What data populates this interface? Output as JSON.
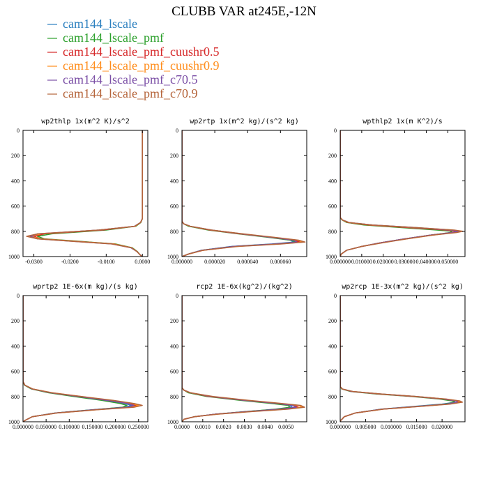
{
  "title": "CLUBB VAR at245E,-12N",
  "legend": [
    {
      "label": "cam144_lscale",
      "color": "#2a7fbf"
    },
    {
      "label": "cam144_lscale_pmf",
      "color": "#2ca02c"
    },
    {
      "label": "cam144_lscale_pmf_cuushr0.5",
      "color": "#d62728"
    },
    {
      "label": "cam144_lscale_pmf_cuushr0.9",
      "color": "#ff8c1a"
    },
    {
      "label": "cam144_lscale_pmf_c70.5",
      "color": "#7b4fa6"
    },
    {
      "label": "cam144_lscale_pmf_c70.9",
      "color": "#b5643a"
    }
  ],
  "chart_data": [
    {
      "type": "line",
      "title": "wp2thlp  1x(m^2 K)/s^2",
      "xlim": [
        -0.033,
        0.0015
      ],
      "ylim": [
        1000,
        0
      ],
      "x_ticks": [
        -0.03,
        -0.02,
        -0.01,
        0.0
      ],
      "x_tick_labels": [
        "-0.0300",
        "-0.0200",
        "-0.0100",
        "0.0000"
      ],
      "y_ticks": [
        0,
        200,
        400,
        600,
        800,
        1000
      ],
      "y_tick_labels": [
        "0",
        "200",
        "400",
        "600",
        "800",
        "1000"
      ],
      "y": [
        0,
        700,
        730,
        760,
        790,
        820,
        840,
        860,
        880,
        900,
        930,
        960,
        990,
        1000
      ],
      "series": [
        {
          "values": [
            0,
            0,
            -0.0005,
            -0.002,
            -0.012,
            -0.028,
            -0.031,
            -0.028,
            -0.018,
            -0.008,
            -0.003,
            -0.0015,
            -0.0005,
            0
          ]
        },
        {
          "values": [
            0,
            0,
            -0.0004,
            -0.0018,
            -0.01,
            -0.025,
            -0.029,
            -0.027,
            -0.017,
            -0.0075,
            -0.0028,
            -0.0014,
            -0.0005,
            0
          ]
        },
        {
          "values": [
            0,
            0,
            -0.0005,
            -0.002,
            -0.011,
            -0.027,
            -0.03,
            -0.028,
            -0.018,
            -0.008,
            -0.003,
            -0.0015,
            -0.0005,
            0
          ]
        },
        {
          "values": [
            0,
            0,
            -0.0005,
            -0.002,
            -0.012,
            -0.028,
            -0.031,
            -0.028,
            -0.018,
            -0.008,
            -0.003,
            -0.0015,
            -0.0005,
            0
          ]
        },
        {
          "values": [
            0,
            0,
            -0.0005,
            -0.0022,
            -0.012,
            -0.029,
            -0.031,
            -0.029,
            -0.019,
            -0.0085,
            -0.0032,
            -0.0015,
            -0.0005,
            0
          ]
        },
        {
          "values": [
            0,
            0,
            -0.0005,
            -0.0021,
            -0.012,
            -0.029,
            -0.032,
            -0.029,
            -0.019,
            -0.0085,
            -0.003,
            -0.0015,
            -0.0005,
            0
          ]
        }
      ]
    },
    {
      "type": "line",
      "title": "wp2rtp  1x(m^2 kg)/(s^2 kg)",
      "xlim": [
        0,
        7.6e-05
      ],
      "ylim": [
        1000,
        0
      ],
      "x_ticks": [
        0,
        2e-05,
        4e-05,
        6e-05
      ],
      "x_tick_labels": [
        "0.000000",
        "0.000020",
        "0.000040",
        "0.000060"
      ],
      "y_ticks": [
        0,
        200,
        400,
        600,
        800,
        1000
      ],
      "y_tick_labels": [
        "0",
        "200",
        "400",
        "600",
        "800",
        "1000"
      ],
      "y": [
        0,
        720,
        740,
        760,
        790,
        820,
        850,
        870,
        885,
        900,
        920,
        950,
        980,
        1000
      ],
      "series": [
        {
          "values": [
            0,
            0,
            1e-06,
            5e-06,
            1.8e-05,
            3.6e-05,
            5.5e-05,
            6.6e-05,
            6.8e-05,
            5.5e-05,
            3e-05,
            1.2e-05,
            4e-06,
            0
          ]
        },
        {
          "values": [
            0,
            0,
            1e-06,
            4e-06,
            1.6e-05,
            3.4e-05,
            5.4e-05,
            6.6e-05,
            7e-05,
            5.7e-05,
            3.1e-05,
            1.2e-05,
            4e-06,
            0
          ]
        },
        {
          "values": [
            0,
            0,
            1e-06,
            5e-06,
            1.7e-05,
            3.5e-05,
            5.6e-05,
            6.8e-05,
            7.2e-05,
            5.8e-05,
            3.2e-05,
            1.3e-05,
            4e-06,
            0
          ]
        },
        {
          "values": [
            0,
            0,
            1e-06,
            5e-06,
            1.8e-05,
            3.6e-05,
            5.7e-05,
            7e-05,
            7.4e-05,
            6e-05,
            3.3e-05,
            1.3e-05,
            4e-06,
            0
          ]
        },
        {
          "values": [
            0,
            0,
            1e-06,
            5e-06,
            1.8e-05,
            3.6e-05,
            5.6e-05,
            6.8e-05,
            7e-05,
            5.7e-05,
            3.1e-05,
            1.2e-05,
            4e-06,
            0
          ]
        },
        {
          "values": [
            0,
            0,
            1e-06,
            5e-06,
            1.8e-05,
            3.7e-05,
            5.8e-05,
            7.1e-05,
            7.5e-05,
            6.1e-05,
            3.4e-05,
            1.3e-05,
            4e-06,
            0
          ]
        }
      ]
    },
    {
      "type": "line",
      "title": "wpthlp2  1x(m K^2)/s",
      "xlim": [
        0,
        0.058
      ],
      "ylim": [
        1000,
        0
      ],
      "x_ticks": [
        0,
        0.01,
        0.02,
        0.03,
        0.04,
        0.05
      ],
      "x_tick_labels": [
        "0.000000",
        "0.010000",
        "0.020000",
        "0.030000",
        "0.040000",
        "0.050000"
      ],
      "y_ticks": [
        0,
        200,
        400,
        600,
        800,
        1000
      ],
      "y_tick_labels": [
        "0",
        "200",
        "400",
        "600",
        "800",
        "1000"
      ],
      "y": [
        0,
        690,
        710,
        730,
        750,
        770,
        790,
        800,
        810,
        830,
        860,
        890,
        920,
        950,
        980,
        1000
      ],
      "series": [
        {
          "values": [
            0,
            0,
            0.001,
            0.004,
            0.015,
            0.035,
            0.052,
            0.055,
            0.052,
            0.042,
            0.03,
            0.019,
            0.01,
            0.003,
            0.0005,
            0
          ]
        },
        {
          "values": [
            0,
            0,
            0.0008,
            0.003,
            0.011,
            0.028,
            0.045,
            0.052,
            0.051,
            0.042,
            0.03,
            0.019,
            0.01,
            0.003,
            0.0005,
            0
          ]
        },
        {
          "values": [
            0,
            0,
            0.001,
            0.0035,
            0.013,
            0.031,
            0.049,
            0.054,
            0.052,
            0.042,
            0.03,
            0.019,
            0.01,
            0.003,
            0.0005,
            0
          ]
        },
        {
          "values": [
            0,
            0,
            0.001,
            0.0038,
            0.014,
            0.033,
            0.051,
            0.056,
            0.053,
            0.043,
            0.031,
            0.019,
            0.01,
            0.003,
            0.0005,
            0
          ]
        },
        {
          "values": [
            0,
            0,
            0.001,
            0.004,
            0.015,
            0.034,
            0.051,
            0.055,
            0.052,
            0.042,
            0.03,
            0.019,
            0.01,
            0.003,
            0.0005,
            0
          ]
        },
        {
          "values": [
            0,
            0,
            0.001,
            0.004,
            0.015,
            0.035,
            0.053,
            0.057,
            0.054,
            0.043,
            0.031,
            0.02,
            0.01,
            0.003,
            0.0005,
            0
          ]
        }
      ]
    },
    {
      "type": "line",
      "title": "wprtp2  1E-6x(m kg)/(s kg)",
      "xlim": [
        0,
        0.27
      ],
      "ylim": [
        1000,
        0
      ],
      "x_ticks": [
        0,
        0.05,
        0.1,
        0.15,
        0.2,
        0.25
      ],
      "x_tick_labels": [
        "0.000000",
        "0.050000",
        "0.100000",
        "0.150000",
        "0.200000",
        "0.250000"
      ],
      "y_ticks": [
        0,
        200,
        400,
        600,
        800,
        1000
      ],
      "y_tick_labels": [
        "0",
        "200",
        "400",
        "600",
        "800",
        "1000"
      ],
      "y": [
        0,
        680,
        710,
        740,
        770,
        800,
        830,
        855,
        870,
        885,
        905,
        930,
        960,
        990,
        1000
      ],
      "series": [
        {
          "values": [
            0,
            0,
            0.004,
            0.02,
            0.06,
            0.12,
            0.18,
            0.22,
            0.235,
            0.22,
            0.15,
            0.07,
            0.02,
            0.004,
            0
          ]
        },
        {
          "values": [
            0,
            0,
            0.003,
            0.018,
            0.055,
            0.11,
            0.17,
            0.21,
            0.225,
            0.215,
            0.15,
            0.07,
            0.02,
            0.004,
            0
          ]
        },
        {
          "values": [
            0,
            0,
            0.004,
            0.02,
            0.06,
            0.12,
            0.185,
            0.23,
            0.245,
            0.23,
            0.155,
            0.072,
            0.02,
            0.004,
            0
          ]
        },
        {
          "values": [
            0,
            0,
            0.004,
            0.021,
            0.062,
            0.125,
            0.19,
            0.235,
            0.25,
            0.235,
            0.158,
            0.073,
            0.02,
            0.004,
            0
          ]
        },
        {
          "values": [
            0,
            0,
            0.004,
            0.02,
            0.06,
            0.12,
            0.18,
            0.225,
            0.24,
            0.225,
            0.152,
            0.071,
            0.02,
            0.004,
            0
          ]
        },
        {
          "values": [
            0,
            0,
            0.004,
            0.021,
            0.063,
            0.127,
            0.195,
            0.24,
            0.258,
            0.24,
            0.16,
            0.074,
            0.02,
            0.004,
            0
          ]
        }
      ]
    },
    {
      "type": "line",
      "title": "rcp2  1E-6x(kg^2)/(kg^2)",
      "xlim": [
        0,
        0.006
      ],
      "ylim": [
        1000,
        0
      ],
      "x_ticks": [
        0,
        0.001,
        0.002,
        0.003,
        0.004,
        0.005
      ],
      "x_tick_labels": [
        "0.0000",
        "0.0010",
        "0.0020",
        "0.0030",
        "0.0040",
        "0.0050"
      ],
      "y_ticks": [
        0,
        200,
        400,
        600,
        800,
        1000
      ],
      "y_tick_labels": [
        "0",
        "200",
        "400",
        "600",
        "800",
        "1000"
      ],
      "y": [
        0,
        730,
        750,
        770,
        800,
        830,
        855,
        870,
        885,
        900,
        920,
        940,
        960,
        980,
        1000
      ],
      "series": [
        {
          "values": [
            0,
            0,
            0.0001,
            0.0004,
            0.0014,
            0.003,
            0.0045,
            0.0052,
            0.0053,
            0.0046,
            0.003,
            0.0016,
            0.0006,
            0.0001,
            0
          ]
        },
        {
          "values": [
            0,
            0,
            0.0001,
            0.0003,
            0.0012,
            0.0028,
            0.0043,
            0.0051,
            0.0052,
            0.0045,
            0.003,
            0.0016,
            0.0006,
            0.0001,
            0
          ]
        },
        {
          "values": [
            0,
            0,
            0.0001,
            0.0004,
            0.0013,
            0.003,
            0.0046,
            0.0054,
            0.0056,
            0.0048,
            0.0031,
            0.0016,
            0.0006,
            0.0001,
            0
          ]
        },
        {
          "values": [
            0,
            0,
            0.0001,
            0.0004,
            0.0014,
            0.0031,
            0.0047,
            0.0056,
            0.0058,
            0.005,
            0.0032,
            0.0017,
            0.0006,
            0.0001,
            0
          ]
        },
        {
          "values": [
            0,
            0,
            0.0001,
            0.0004,
            0.0014,
            0.003,
            0.0046,
            0.0053,
            0.0055,
            0.0047,
            0.0031,
            0.0016,
            0.0006,
            0.0001,
            0
          ]
        },
        {
          "values": [
            0,
            0,
            0.0001,
            0.0004,
            0.0015,
            0.0032,
            0.0048,
            0.0057,
            0.0059,
            0.0051,
            0.0033,
            0.0017,
            0.0006,
            0.0001,
            0
          ]
        }
      ]
    },
    {
      "type": "line",
      "title": "wp2rcp  1E-3x(m^2 kg)/(s^2 kg)",
      "xlim": [
        0,
        0.0245
      ],
      "ylim": [
        1000,
        0
      ],
      "x_ticks": [
        0,
        0.005,
        0.01,
        0.015,
        0.02
      ],
      "x_tick_labels": [
        "0.000000",
        "0.005000",
        "0.010000",
        "0.015000",
        "0.020000"
      ],
      "y_ticks": [
        0,
        200,
        400,
        600,
        800,
        1000
      ],
      "y_tick_labels": [
        "0",
        "200",
        "400",
        "600",
        "800",
        "1000"
      ],
      "y": [
        0,
        720,
        740,
        760,
        780,
        800,
        820,
        835,
        845,
        860,
        880,
        900,
        930,
        960,
        990,
        1000
      ],
      "series": [
        {
          "values": [
            0,
            0,
            0.0004,
            0.0025,
            0.008,
            0.015,
            0.0205,
            0.0225,
            0.0225,
            0.02,
            0.014,
            0.008,
            0.003,
            0.0008,
            0.0001,
            0
          ]
        },
        {
          "values": [
            0,
            0,
            0.0003,
            0.002,
            0.007,
            0.014,
            0.0195,
            0.022,
            0.0225,
            0.0205,
            0.0145,
            0.0082,
            0.003,
            0.0008,
            0.0001,
            0
          ]
        },
        {
          "values": [
            0,
            0,
            0.0004,
            0.0022,
            0.0075,
            0.0145,
            0.0202,
            0.0228,
            0.0232,
            0.021,
            0.0148,
            0.0083,
            0.003,
            0.0008,
            0.0001,
            0
          ]
        },
        {
          "values": [
            0,
            0,
            0.0004,
            0.0024,
            0.0078,
            0.0148,
            0.0206,
            0.0232,
            0.0236,
            0.0213,
            0.015,
            0.0084,
            0.003,
            0.0008,
            0.0001,
            0
          ]
        },
        {
          "values": [
            0,
            0,
            0.0004,
            0.0023,
            0.0078,
            0.0147,
            0.0203,
            0.0228,
            0.023,
            0.0208,
            0.0146,
            0.0082,
            0.003,
            0.0008,
            0.0001,
            0
          ]
        },
        {
          "values": [
            0,
            0,
            0.0004,
            0.0025,
            0.008,
            0.015,
            0.0208,
            0.0235,
            0.024,
            0.0216,
            0.0152,
            0.0085,
            0.003,
            0.0008,
            0.0001,
            0
          ]
        }
      ]
    }
  ]
}
